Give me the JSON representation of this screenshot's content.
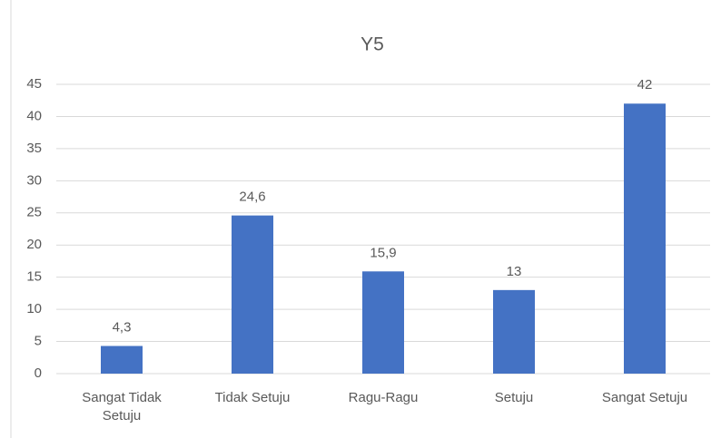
{
  "chart_data": {
    "type": "bar",
    "title": "Y5",
    "categories": [
      "Sangat Tidak Setuju",
      "Tidak Setuju",
      "Ragu-Ragu",
      "Setuju",
      "Sangat Setuju"
    ],
    "values": [
      4.3,
      24.6,
      15.9,
      13,
      42
    ],
    "value_labels": [
      "4,3",
      "24,6",
      "15,9",
      "13",
      "42"
    ],
    "color": "#4472c4",
    "ylim": [
      0,
      45
    ],
    "yticks": [
      0,
      5,
      10,
      15,
      20,
      25,
      30,
      35,
      40,
      45
    ],
    "grid": true
  }
}
